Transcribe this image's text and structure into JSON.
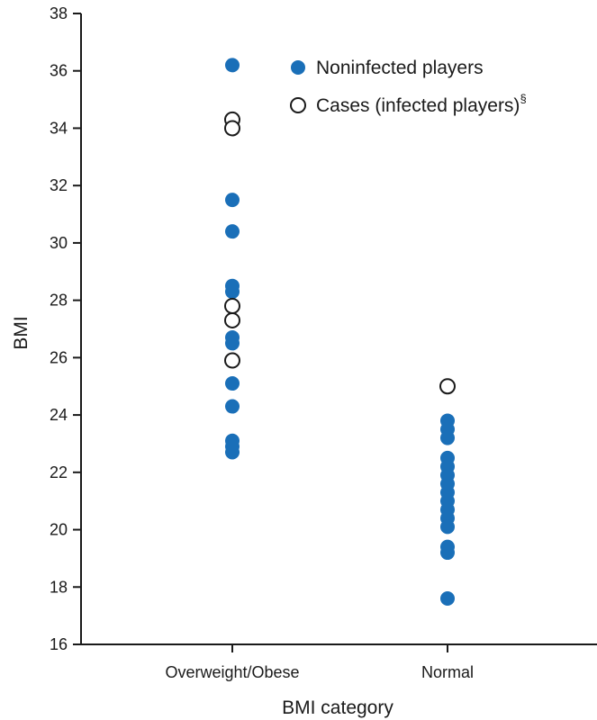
{
  "chart_data": {
    "type": "scatter",
    "xlabel": "BMI category",
    "ylabel": "BMI",
    "categories": [
      "Overweight/Obese",
      "Normal"
    ],
    "ylim": [
      16,
      38
    ],
    "yticks": [
      16,
      18,
      20,
      22,
      24,
      26,
      28,
      30,
      32,
      34,
      36,
      38
    ],
    "grid": false,
    "legend_position": "top-right",
    "series": [
      {
        "name": "Noninfected players",
        "marker": "filled-circle",
        "color": "#1a6fb8",
        "points": [
          {
            "x": "Overweight/Obese",
            "y": 36.2
          },
          {
            "x": "Overweight/Obese",
            "y": 31.5
          },
          {
            "x": "Overweight/Obese",
            "y": 30.4
          },
          {
            "x": "Overweight/Obese",
            "y": 28.5
          },
          {
            "x": "Overweight/Obese",
            "y": 28.3
          },
          {
            "x": "Overweight/Obese",
            "y": 26.7
          },
          {
            "x": "Overweight/Obese",
            "y": 26.5
          },
          {
            "x": "Overweight/Obese",
            "y": 25.1
          },
          {
            "x": "Overweight/Obese",
            "y": 24.3
          },
          {
            "x": "Overweight/Obese",
            "y": 23.1
          },
          {
            "x": "Overweight/Obese",
            "y": 22.9
          },
          {
            "x": "Overweight/Obese",
            "y": 22.7
          },
          {
            "x": "Normal",
            "y": 23.8
          },
          {
            "x": "Normal",
            "y": 23.5
          },
          {
            "x": "Normal",
            "y": 23.2
          },
          {
            "x": "Normal",
            "y": 22.5
          },
          {
            "x": "Normal",
            "y": 22.2
          },
          {
            "x": "Normal",
            "y": 21.9
          },
          {
            "x": "Normal",
            "y": 21.6
          },
          {
            "x": "Normal",
            "y": 21.3
          },
          {
            "x": "Normal",
            "y": 21.0
          },
          {
            "x": "Normal",
            "y": 20.7
          },
          {
            "x": "Normal",
            "y": 20.4
          },
          {
            "x": "Normal",
            "y": 20.1
          },
          {
            "x": "Normal",
            "y": 19.4
          },
          {
            "x": "Normal",
            "y": 19.2
          },
          {
            "x": "Normal",
            "y": 17.6
          }
        ]
      },
      {
        "name": "Cases (infected players)",
        "name_superscript": "§",
        "marker": "open-circle",
        "color": "#1a1a1a",
        "points": [
          {
            "x": "Overweight/Obese",
            "y": 34.3
          },
          {
            "x": "Overweight/Obese",
            "y": 34.0
          },
          {
            "x": "Overweight/Obese",
            "y": 27.8
          },
          {
            "x": "Overweight/Obese",
            "y": 27.3
          },
          {
            "x": "Overweight/Obese",
            "y": 25.9
          },
          {
            "x": "Normal",
            "y": 25.0
          }
        ]
      }
    ]
  }
}
